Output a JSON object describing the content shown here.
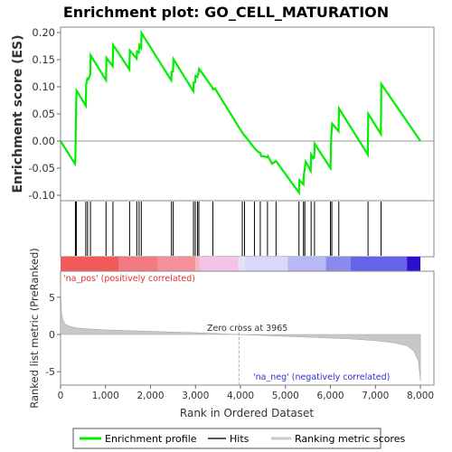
{
  "chart_data": {
    "type": "line",
    "title": "Enrichment plot: GO_CELL_MATURATION",
    "colors": {
      "enrichment": "#00ee00",
      "hits": "#000000",
      "metric": "#c8c8c8",
      "pos_label": "#e03030",
      "neg_label": "#3030d0"
    },
    "es_panel": {
      "ylabel": "Enrichment score (ES)",
      "ylim": [
        -0.11,
        0.21
      ],
      "yticks": [
        "0.20",
        "0.15",
        "0.10",
        "0.05",
        "0.00",
        "-0.05",
        "-0.10"
      ],
      "ytick_values": [
        0.2,
        0.15,
        0.1,
        0.05,
        0.0,
        -0.05,
        -0.1
      ],
      "series": [
        {
          "name": "Enrichment profile",
          "x": [
            0,
            320,
            330,
            340,
            350,
            355,
            560,
            570,
            600,
            605,
            660,
            670,
            1010,
            1020,
            1160,
            1170,
            1530,
            1540,
            1690,
            1700,
            1740,
            1750,
            1790,
            1800,
            2460,
            2470,
            2500,
            2510,
            2950,
            2960,
            2990,
            3000,
            3040,
            3050,
            3060,
            3080,
            3380,
            3390,
            3430,
            4020,
            4070,
            4090,
            4150,
            4280,
            4330,
            4390,
            4440,
            4460,
            4510,
            4600,
            4610,
            4700,
            4790,
            4800,
            5300,
            5310,
            5400,
            5410,
            5450,
            5560,
            5570,
            5620,
            5640,
            5650,
            6000,
            6010,
            6020,
            6040,
            6180,
            6190,
            6830,
            6840,
            7120,
            7130,
            8000
          ],
          "y": [
            0.0,
            -0.042,
            -0.03,
            0.03,
            0.08,
            0.093,
            0.065,
            0.105,
            0.117,
            0.112,
            0.122,
            0.158,
            0.112,
            0.153,
            0.138,
            0.177,
            0.132,
            0.167,
            0.152,
            0.165,
            0.163,
            0.177,
            0.172,
            0.199,
            0.112,
            0.128,
            0.128,
            0.151,
            0.092,
            0.108,
            0.108,
            0.12,
            0.118,
            0.122,
            0.123,
            0.133,
            0.098,
            0.095,
            0.097,
            0.018,
            0.012,
            0.01,
            0.004,
            -0.01,
            -0.015,
            -0.02,
            -0.022,
            -0.028,
            -0.028,
            -0.03,
            -0.028,
            -0.042,
            -0.037,
            -0.038,
            -0.095,
            -0.072,
            -0.08,
            -0.062,
            -0.038,
            -0.055,
            -0.025,
            -0.032,
            -0.03,
            -0.005,
            -0.05,
            -0.008,
            0.01,
            0.032,
            0.018,
            0.06,
            -0.025,
            0.05,
            0.013,
            0.105,
            0.0
          ]
        }
      ]
    },
    "hits": [
      330,
      345,
      350,
      560,
      600,
      665,
      1010,
      1165,
      1535,
      1695,
      1745,
      1795,
      2465,
      2505,
      2955,
      2995,
      3045,
      3075,
      3385,
      4040,
      4090,
      4310,
      4440,
      4600,
      4790,
      5300,
      5400,
      5430,
      5570,
      5645,
      6000,
      6030,
      6185,
      6835,
      7125
    ],
    "ranked_panel": {
      "ylabel": "Ranked list metric (PreRanked)",
      "ylim": [
        -6.8,
        8.5
      ],
      "yticks": [
        "5",
        "0",
        "-5"
      ],
      "ytick_values": [
        5,
        0,
        -5
      ],
      "metric_points": [
        [
          0,
          6.5
        ],
        [
          20,
          3.0
        ],
        [
          50,
          2.0
        ],
        [
          100,
          1.4
        ],
        [
          200,
          1.1
        ],
        [
          350,
          0.9
        ],
        [
          600,
          0.75
        ],
        [
          1000,
          0.62
        ],
        [
          1500,
          0.52
        ],
        [
          2000,
          0.42
        ],
        [
          2500,
          0.33
        ],
        [
          3000,
          0.24
        ],
        [
          3500,
          0.12
        ],
        [
          3965,
          0.0
        ],
        [
          4500,
          -0.13
        ],
        [
          5000,
          -0.25
        ],
        [
          5500,
          -0.36
        ],
        [
          6000,
          -0.48
        ],
        [
          6500,
          -0.62
        ],
        [
          7000,
          -0.82
        ],
        [
          7400,
          -1.1
        ],
        [
          7700,
          -1.5
        ],
        [
          7850,
          -2.2
        ],
        [
          7950,
          -3.5
        ],
        [
          7990,
          -5.5
        ],
        [
          8000,
          -6.2
        ]
      ],
      "zero_cross_label": "Zero cross at 3965",
      "zero_cross_x": 3965,
      "pos_label": "'na_pos' (positively correlated)",
      "neg_label": "'na_neg' (negatively correlated)"
    },
    "xlabel": "Rank in Ordered Dataset",
    "xlim": [
      0,
      8300
    ],
    "xticks": [
      "0",
      "1,000",
      "2,000",
      "3,000",
      "4,000",
      "5,000",
      "6,000",
      "7,000",
      "8,000"
    ],
    "xtick_values": [
      0,
      1000,
      2000,
      3000,
      4000,
      5000,
      6000,
      7000,
      8000
    ],
    "heatbar": {
      "xmax": 8000,
      "segments": [
        {
          "end": 1300,
          "color": "#f25a5a"
        },
        {
          "end": 2150,
          "color": "#f47a82"
        },
        {
          "end": 3000,
          "color": "#f5909a"
        },
        {
          "end": 3100,
          "color": "#f7b5c4"
        },
        {
          "end": 3950,
          "color": "#f4c2e6"
        },
        {
          "end": 4100,
          "color": "#e8e0f6"
        },
        {
          "end": 5050,
          "color": "#d8d8fa"
        },
        {
          "end": 5900,
          "color": "#b8b8f4"
        },
        {
          "end": 6450,
          "color": "#8a8aee"
        },
        {
          "end": 7700,
          "color": "#6464e6"
        },
        {
          "end": 8000,
          "color": "#2a10cc"
        }
      ]
    },
    "legend": {
      "position": "bottom",
      "items": [
        "Enrichment profile",
        "Hits",
        "Ranking metric scores"
      ]
    }
  }
}
